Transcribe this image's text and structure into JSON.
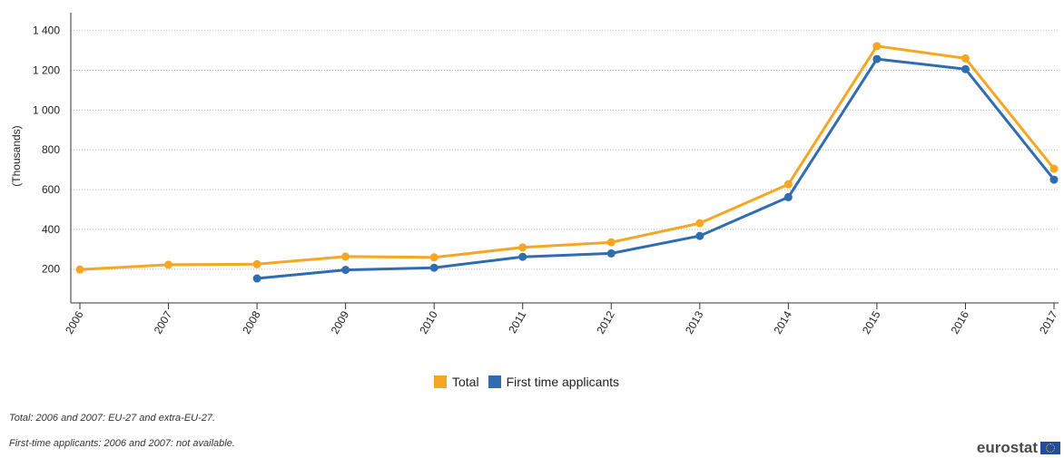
{
  "chart_data": {
    "type": "line",
    "categories": [
      "2006",
      "2007",
      "2008",
      "2009",
      "2010",
      "2011",
      "2012",
      "2013",
      "2014",
      "2015",
      "2016",
      "2017"
    ],
    "series": [
      {
        "name": "Total",
        "color": "#f5a623",
        "values": [
          198,
          222,
          225,
          263,
          259,
          309,
          335,
          431,
          627,
          1322,
          1260,
          705
        ]
      },
      {
        "name": "First time applicants",
        "color": "#2f6db0",
        "values": [
          null,
          null,
          153,
          196,
          207,
          262,
          279,
          367,
          562,
          1257,
          1206,
          650
        ]
      }
    ],
    "ylabel": "(Thousands)",
    "yticks": [
      200,
      400,
      600,
      800,
      1000,
      1200,
      1400
    ],
    "ytick_labels": [
      "200",
      "400",
      "600",
      "800",
      "1 000",
      "1 200",
      "1 400"
    ],
    "ylim": [
      30,
      1490
    ],
    "grid": true,
    "legend_position": "bottom"
  },
  "notes": [
    "Total: 2006 and 2007: EU-27 and extra-EU-27.",
    "First-time applicants: 2006 and 2007: not available."
  ],
  "logo_text": "eurostat"
}
